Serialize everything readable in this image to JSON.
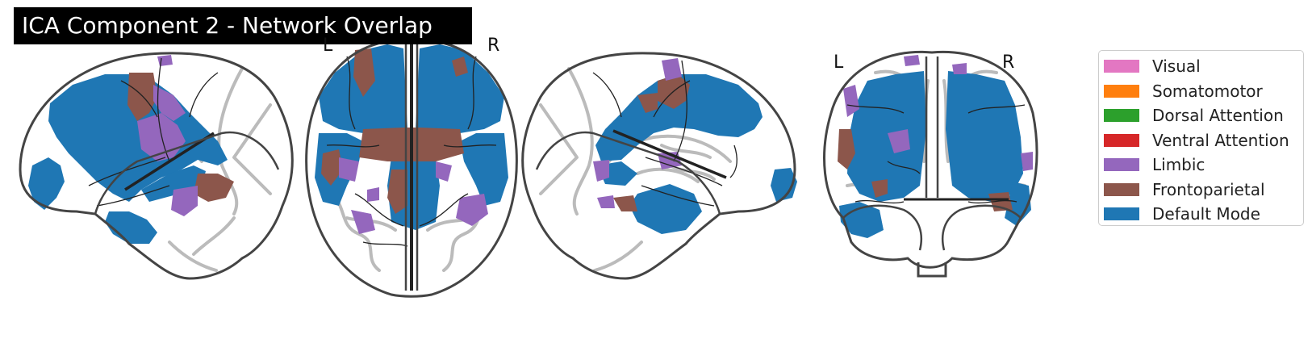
{
  "figure": {
    "title": "ICA Component 2 - Network Overlap",
    "views": [
      {
        "name": "sagittal-left",
        "labels": []
      },
      {
        "name": "axial",
        "labels": [
          "L",
          "R"
        ]
      },
      {
        "name": "sagittal-right",
        "labels": []
      },
      {
        "name": "coronal",
        "labels": [
          "L",
          "R"
        ]
      }
    ]
  },
  "legend": {
    "items": [
      {
        "label": "Visual",
        "color": "#e377c2"
      },
      {
        "label": "Somatomotor",
        "color": "#ff7f0e"
      },
      {
        "label": "Dorsal Attention",
        "color": "#2ca02c"
      },
      {
        "label": "Ventral Attention",
        "color": "#d62728"
      },
      {
        "label": "Limbic",
        "color": "#9467bd"
      },
      {
        "label": "Frontoparietal",
        "color": "#8c564b"
      },
      {
        "label": "Default Mode",
        "color": "#1f77b4"
      }
    ]
  },
  "colors": {
    "default_mode": "#1f77b4",
    "frontoparietal": "#8c564b",
    "limbic": "#9467bd",
    "outline": "#444444",
    "sulci": "#bbbbbb"
  }
}
